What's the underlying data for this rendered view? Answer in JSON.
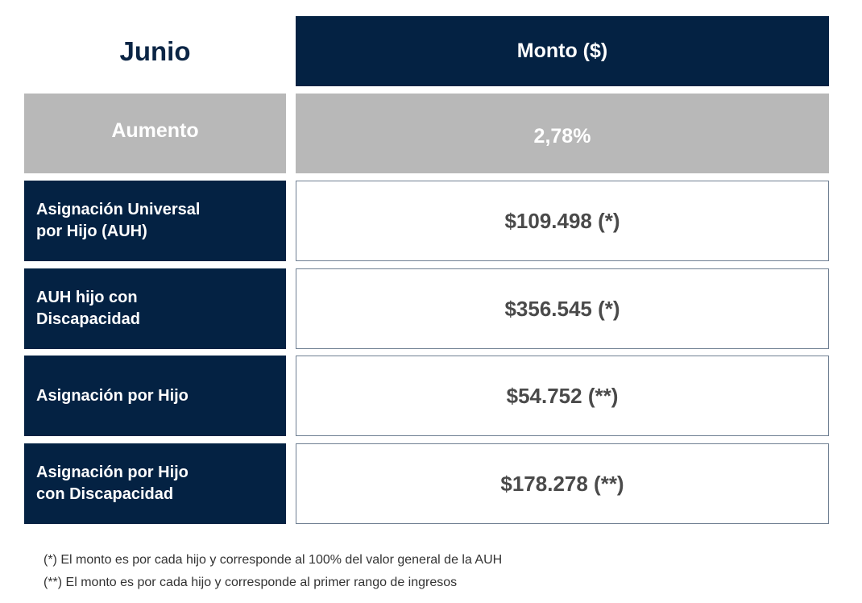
{
  "table": {
    "header": {
      "title": "Junio",
      "column_label": "Monto ($)"
    },
    "increase": {
      "label": "Aumento",
      "value": "2,78%"
    },
    "rows": [
      {
        "label_line1": "Asignación Universal",
        "label_line2": "por Hijo (AUH)",
        "value": "$109.498 (*)"
      },
      {
        "label_line1": "AUH hijo con",
        "label_line2": "Discapacidad",
        "value": "$356.545 (*)"
      },
      {
        "label_line1": "Asignación por Hijo",
        "label_line2": "",
        "value": "$54.752 (**)"
      },
      {
        "label_line1": "Asignación por Hijo",
        "label_line2": "con Discapacidad",
        "value": "$178.278 (**)"
      }
    ]
  },
  "footnotes": [
    "(*) El monto es por cada hijo y corresponde al 100% del valor general de la AUH",
    "(**) El monto es por cada hijo y corresponde al primer rango de ingresos"
  ],
  "colors": {
    "navy": "#042243",
    "gray": "#b8b8b8",
    "title_text": "#0b2545"
  }
}
